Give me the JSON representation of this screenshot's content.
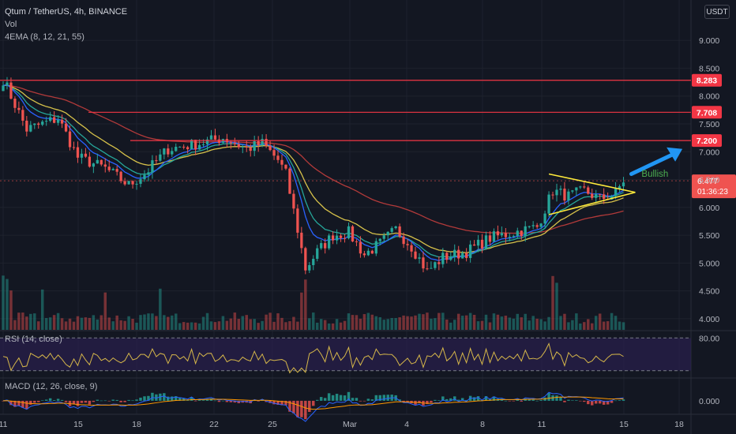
{
  "header": {
    "symbol_line": "Qtum / TetherUS, 4h, BINANCE",
    "vol_label": "Vol",
    "ema_label": "4EMA (8, 12, 21, 55)"
  },
  "currency_button": "USDT",
  "rsi": {
    "label": "RSI (14, close)",
    "level_label": "80.00"
  },
  "macd": {
    "label": "MACD (12, 26, close, 9)",
    "level_label": "0.000"
  },
  "annotation": {
    "bullish_text": "Bullish"
  },
  "colors": {
    "background": "#131722",
    "grid": "#1e222d",
    "up": "#26a69a",
    "down": "#ef5350",
    "resistance": "#f23645",
    "triangle": "#ffeb3b",
    "arrow": "#2196f3",
    "bullish_text": "#4caf50",
    "rsi_band": "#2a1f4d",
    "rsi_line": "#d6b74a",
    "macd_line": "#2962ff",
    "signal_line": "#ff9800",
    "price_badge": "#ef5350"
  },
  "chart_data": {
    "type": "candlestick",
    "x_axis_labels": [
      "11",
      "15",
      "18",
      "22",
      "25",
      "Mar",
      "4",
      "8",
      "11",
      "15",
      "18"
    ],
    "y_axis_labels": [
      "9.000",
      "8.500",
      "8.000",
      "7.500",
      "7.000",
      "6.500",
      "6.000",
      "5.500",
      "5.000",
      "4.500",
      "4.000"
    ],
    "y_range": [
      3.8,
      9.3
    ],
    "resistance_levels": [
      8.283,
      7.708,
      7.2
    ],
    "current_price": "6.477",
    "countdown": "01:36:23",
    "keypoints": [
      {
        "i": 0,
        "p": 8.3
      },
      {
        "i": 6,
        "p": 7.4
      },
      {
        "i": 10,
        "p": 7.5
      },
      {
        "i": 14,
        "p": 7.6
      },
      {
        "i": 19,
        "p": 6.9
      },
      {
        "i": 26,
        "p": 6.7
      },
      {
        "i": 32,
        "p": 6.4
      },
      {
        "i": 36,
        "p": 6.6
      },
      {
        "i": 42,
        "p": 7.05
      },
      {
        "i": 50,
        "p": 7.15
      },
      {
        "i": 56,
        "p": 7.25
      },
      {
        "i": 62,
        "p": 7.05
      },
      {
        "i": 66,
        "p": 7.15
      },
      {
        "i": 70,
        "p": 6.85
      },
      {
        "i": 72,
        "p": 6.6
      },
      {
        "i": 75,
        "p": 5.6
      },
      {
        "i": 77,
        "p": 4.9
      },
      {
        "i": 80,
        "p": 5.2
      },
      {
        "i": 84,
        "p": 5.5
      },
      {
        "i": 88,
        "p": 5.55
      },
      {
        "i": 92,
        "p": 5.15
      },
      {
        "i": 96,
        "p": 5.35
      },
      {
        "i": 100,
        "p": 5.6
      },
      {
        "i": 104,
        "p": 5.3
      },
      {
        "i": 108,
        "p": 4.85
      },
      {
        "i": 112,
        "p": 5.1
      },
      {
        "i": 118,
        "p": 5.2
      },
      {
        "i": 124,
        "p": 5.45
      },
      {
        "i": 130,
        "p": 5.55
      },
      {
        "i": 136,
        "p": 5.65
      },
      {
        "i": 140,
        "p": 6.3
      },
      {
        "i": 144,
        "p": 6.2
      },
      {
        "i": 148,
        "p": 6.3
      },
      {
        "i": 152,
        "p": 6.15
      },
      {
        "i": 156,
        "p": 6.25
      },
      {
        "i": 158,
        "p": 6.48
      }
    ],
    "rsi_range": [
      20,
      90
    ],
    "rsi_band": [
      30,
      80
    ],
    "triangle": {
      "upper": [
        {
          "i": 139,
          "p": 6.6
        },
        {
          "i": 157,
          "p": 6.3
        }
      ],
      "lower": [
        {
          "i": 139,
          "p": 5.87
        },
        {
          "i": 157,
          "p": 6.25
        }
      ],
      "apex": {
        "i": 161,
        "p": 6.27
      }
    },
    "arrow": {
      "from": {
        "i": 160,
        "p": 6.6
      },
      "to": {
        "i": 173,
        "p": 7.05
      }
    }
  }
}
